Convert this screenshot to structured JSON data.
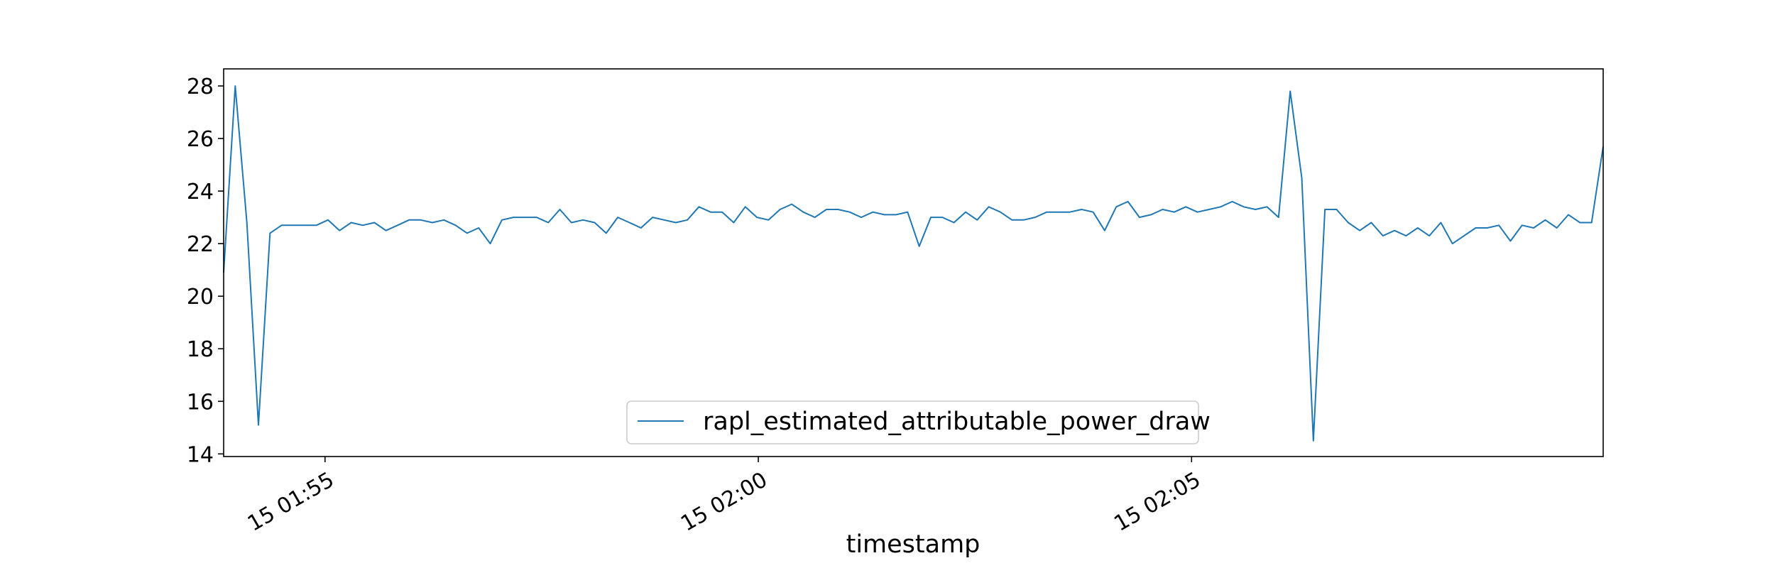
{
  "chart_data": {
    "type": "line",
    "title": "",
    "xlabel": "timestamp",
    "ylabel": "",
    "x_ticks": [
      "15 01:55",
      "15 02:00",
      "15 02:05"
    ],
    "x_tick_minutes": [
      5,
      10,
      15
    ],
    "xlim_minutes": [
      3.83,
      19.75
    ],
    "ylim": [
      13.9,
      28.65
    ],
    "y_ticks": [
      14,
      16,
      18,
      20,
      22,
      24,
      26,
      28
    ],
    "legend": "lower center",
    "grid": false,
    "series": [
      {
        "name": "rapl_estimated_attributable_power_draw",
        "color": "#1f77b4",
        "values": [
          20.9,
          28.0,
          22.8,
          15.1,
          22.4,
          22.7,
          22.7,
          22.7,
          22.7,
          22.9,
          22.5,
          22.8,
          22.7,
          22.8,
          22.5,
          22.7,
          22.9,
          22.9,
          22.8,
          22.9,
          22.7,
          22.4,
          22.6,
          22.0,
          22.9,
          23.0,
          23.0,
          23.0,
          22.8,
          23.3,
          22.8,
          22.9,
          22.8,
          22.4,
          23.0,
          22.8,
          22.6,
          23.0,
          22.9,
          22.8,
          22.9,
          23.4,
          23.2,
          23.2,
          22.8,
          23.4,
          23.0,
          22.9,
          23.3,
          23.5,
          23.2,
          23.0,
          23.3,
          23.3,
          23.2,
          23.0,
          23.2,
          23.1,
          23.1,
          23.2,
          21.9,
          23.0,
          23.0,
          22.8,
          23.2,
          22.9,
          23.4,
          23.2,
          22.9,
          22.9,
          23.0,
          23.2,
          23.2,
          23.2,
          23.3,
          23.2,
          22.5,
          23.4,
          23.6,
          23.0,
          23.1,
          23.3,
          23.2,
          23.4,
          23.2,
          23.3,
          23.4,
          23.6,
          23.4,
          23.3,
          23.4,
          23.0,
          27.8,
          24.5,
          14.5,
          23.3,
          23.3,
          22.8,
          22.5,
          22.8,
          22.3,
          22.5,
          22.3,
          22.6,
          22.3,
          22.8,
          22.0,
          22.3,
          22.6,
          22.6,
          22.7,
          22.1,
          22.7,
          22.6,
          22.9,
          22.6,
          23.1,
          22.8,
          22.8,
          25.7
        ]
      }
    ]
  }
}
